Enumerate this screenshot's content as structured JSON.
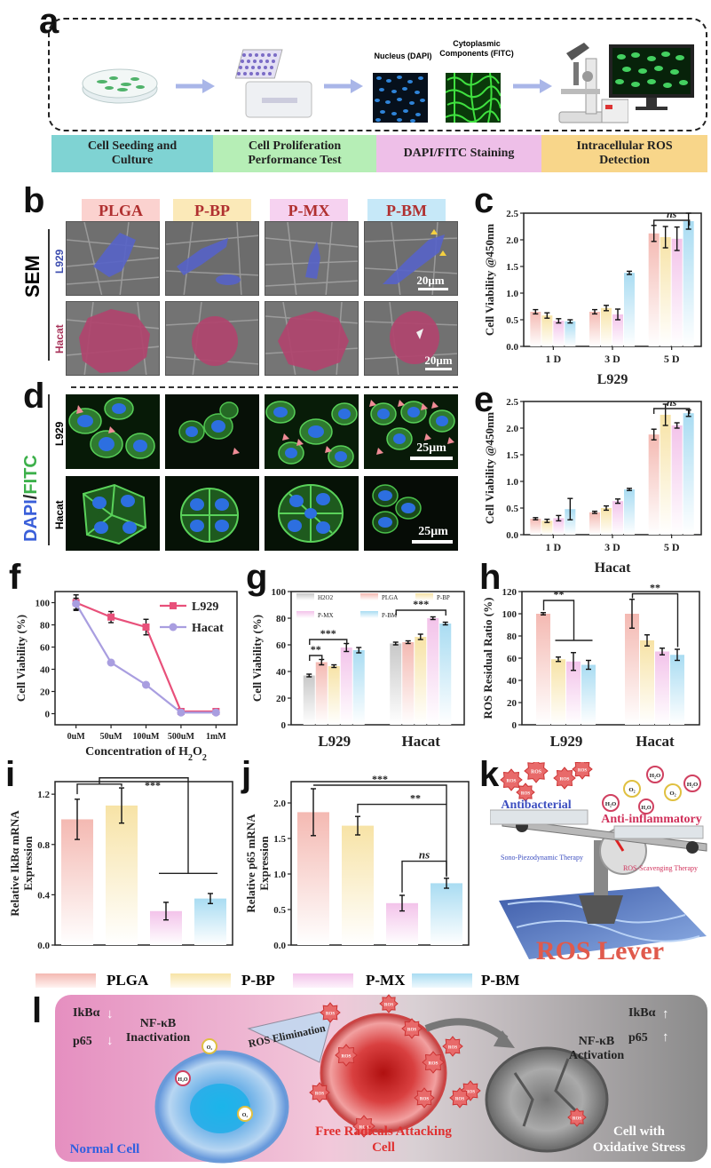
{
  "labels": {
    "a": "a",
    "b": "b",
    "c": "c",
    "d": "d",
    "e": "e",
    "f": "f",
    "g": "g",
    "h": "h",
    "i": "i",
    "j": "j",
    "k": "k",
    "l": "l"
  },
  "panel_a": {
    "nucleus": "Nucleus (DAPI)",
    "cyto": "Cytoplasmic Components (FITC)",
    "steps": [
      "Cell Seeding and Culture",
      "Cell Proliferation Performance Test",
      "DAPI/FITC Staining",
      "Intracellular ROS Detection"
    ]
  },
  "panel_b": {
    "conditions": [
      "PLGA",
      "P-BP",
      "P-MX",
      "P-BM"
    ],
    "row_labels": [
      "L929",
      "Hacat"
    ],
    "side_label": "SEM",
    "scale": "20μm"
  },
  "panel_d": {
    "row_labels": [
      "L929",
      "Hacat"
    ],
    "stain_dapi": "DAPI",
    "stain_sep": "/",
    "stain_fitc": "FITC",
    "scale": "25μm"
  },
  "chart_data": [
    {
      "panel": "c",
      "type": "bar",
      "title": "L929",
      "ylabel": "Cell Viability @450nm",
      "categories": [
        "1 D",
        "3 D",
        "5 D"
      ],
      "ylim": [
        0,
        2.5
      ],
      "yticks": [
        "0.0",
        "0.5",
        "1.0",
        "1.5",
        "2.0",
        "2.5"
      ],
      "series": [
        {
          "name": "PLGA",
          "values": [
            0.65,
            0.65,
            2.12
          ]
        },
        {
          "name": "P-BP",
          "values": [
            0.58,
            0.72,
            2.05
          ]
        },
        {
          "name": "P-MX",
          "values": [
            0.48,
            0.6,
            2.02
          ]
        },
        {
          "name": "P-BM",
          "values": [
            0.47,
            1.38,
            2.35
          ]
        }
      ],
      "errors": [
        [
          0.04,
          0.04,
          0.15
        ],
        [
          0.05,
          0.05,
          0.2
        ],
        [
          0.04,
          0.1,
          0.22
        ],
        [
          0.03,
          0.03,
          0.15
        ]
      ],
      "annotations": [
        "ns"
      ]
    },
    {
      "panel": "e",
      "type": "bar",
      "title": "Hacat",
      "ylabel": "Cell Viability @450nm",
      "categories": [
        "1 D",
        "3 D",
        "5 D"
      ],
      "ylim": [
        0,
        2.5
      ],
      "yticks": [
        "0.0",
        "0.5",
        "1.0",
        "1.5",
        "2.0",
        "2.5"
      ],
      "series": [
        {
          "name": "PLGA",
          "values": [
            0.3,
            0.42,
            1.88
          ]
        },
        {
          "name": "P-BP",
          "values": [
            0.26,
            0.5,
            2.25
          ]
        },
        {
          "name": "P-MX",
          "values": [
            0.31,
            0.63,
            2.05
          ]
        },
        {
          "name": "P-BM",
          "values": [
            0.48,
            0.85,
            2.28
          ]
        }
      ],
      "errors": [
        [
          0.02,
          0.02,
          0.1
        ],
        [
          0.03,
          0.04,
          0.2
        ],
        [
          0.05,
          0.04,
          0.05
        ],
        [
          0.2,
          0.02,
          0.06
        ]
      ],
      "annotations": [
        "ns"
      ]
    },
    {
      "panel": "f",
      "type": "line",
      "xlabel": "Concentration of H2O2",
      "ylabel": "Cell Viability (%)",
      "categories": [
        "0uM",
        "50uM",
        "100uM",
        "500uM",
        "1mM"
      ],
      "ylim": [
        -10,
        110
      ],
      "yticks": [
        "0",
        "20",
        "40",
        "60",
        "80",
        "100"
      ],
      "series": [
        {
          "name": "L929",
          "values": [
            100,
            87,
            78,
            2,
            2
          ],
          "errors": [
            7,
            5,
            7,
            1,
            1
          ]
        },
        {
          "name": "Hacat",
          "values": [
            99,
            46,
            26,
            1,
            1
          ],
          "errors": [
            5,
            2,
            2,
            1,
            1
          ]
        }
      ]
    },
    {
      "panel": "g",
      "type": "bar",
      "ylabel": "Cell Viability (%)",
      "categories": [
        "L929",
        "Hacat"
      ],
      "ylim": [
        0,
        100
      ],
      "yticks": [
        "0",
        "20",
        "40",
        "60",
        "80",
        "100"
      ],
      "series": [
        {
          "name": "H2O2",
          "values": [
            37,
            61
          ]
        },
        {
          "name": "PLGA",
          "values": [
            47,
            62
          ]
        },
        {
          "name": "P-BP",
          "values": [
            44,
            66
          ]
        },
        {
          "name": "P-MX",
          "values": [
            58,
            80
          ]
        },
        {
          "name": "P-BM",
          "values": [
            56,
            76
          ]
        }
      ],
      "errors": [
        [
          1,
          1
        ],
        [
          2,
          1
        ],
        [
          1,
          2
        ],
        [
          3,
          1
        ],
        [
          2,
          1
        ]
      ],
      "annotations": [
        "**",
        "***",
        "***"
      ]
    },
    {
      "panel": "h",
      "type": "bar",
      "ylabel": "ROS Residual Ratio (%)",
      "categories": [
        "L929",
        "Hacat"
      ],
      "ylim": [
        0,
        120
      ],
      "yticks": [
        "0",
        "20",
        "40",
        "60",
        "80",
        "100",
        "120"
      ],
      "series": [
        {
          "name": "PLGA",
          "values": [
            100,
            100
          ]
        },
        {
          "name": "P-BP",
          "values": [
            59,
            76
          ]
        },
        {
          "name": "P-MX",
          "values": [
            57,
            66
          ]
        },
        {
          "name": "P-BM",
          "values": [
            54,
            63
          ]
        }
      ],
      "errors": [
        [
          1,
          13
        ],
        [
          2,
          5
        ],
        [
          8,
          3
        ],
        [
          4,
          5
        ]
      ],
      "annotations": [
        "**",
        "**"
      ]
    },
    {
      "panel": "i",
      "type": "bar",
      "ylabel": "Relative IkBα mRNA Expression",
      "categories": [
        "PLGA",
        "P-BP",
        "P-MX",
        "P-BM"
      ],
      "ylim": [
        0,
        1.3
      ],
      "yticks": [
        "0.0",
        "0.4",
        "0.8",
        "1.2"
      ],
      "values": [
        1.0,
        1.11,
        0.27,
        0.37
      ],
      "errors": [
        0.16,
        0.14,
        0.07,
        0.04
      ],
      "annotations": [
        "***"
      ]
    },
    {
      "panel": "j",
      "type": "bar",
      "ylabel": "Relative p65 mRNA Expression",
      "categories": [
        "PLGA",
        "P-BP",
        "P-MX",
        "P-BM"
      ],
      "ylim": [
        0,
        2.3
      ],
      "yticks": [
        "0.0",
        "0.5",
        "1.0",
        "1.5",
        "2.0"
      ],
      "values": [
        1.87,
        1.68,
        0.59,
        0.87
      ],
      "errors": [
        0.33,
        0.13,
        0.11,
        0.07
      ],
      "annotations": [
        "***",
        "**",
        "ns"
      ]
    }
  ],
  "legend_ij": [
    "PLGA",
    "P-BP",
    "P-MX",
    "P-BM"
  ],
  "colors": {
    "PLGA": "#f4b9b2",
    "P-BP": "#f7e3a6",
    "P-MX": "#f3c3ea",
    "P-BM": "#a9dcf2",
    "H2O2": "#c8c8c8",
    "L929line": "#e8507a",
    "Hacatline": "#a99ee0"
  },
  "panel_k": {
    "antibacterial": "Antibacterial",
    "antiinflam": "Anti-inflammatory",
    "sono": "Sono-Piezodynamic Therapy",
    "scav": "ROS-Scavenging Therapy",
    "lever": "ROS Lever",
    "o2": "O₂",
    "h2o": "H₂O",
    "ros": "ROS"
  },
  "panel_l": {
    "ikba": "IkBα",
    "p65": "p65",
    "arrow_down": "↓",
    "arrow_up": "↑",
    "nfkb_inact": "NF-κB Inactivation",
    "nfkb_act": "NF-κB Activation",
    "ros_elim": "ROS Elimination",
    "normal": "Normal Cell",
    "free": "Free Radicals Attacking Cell",
    "oxid": "Cell with Oxidative Stress",
    "o2": "O₂",
    "h2o": "H₂O",
    "ros": "ROS"
  }
}
